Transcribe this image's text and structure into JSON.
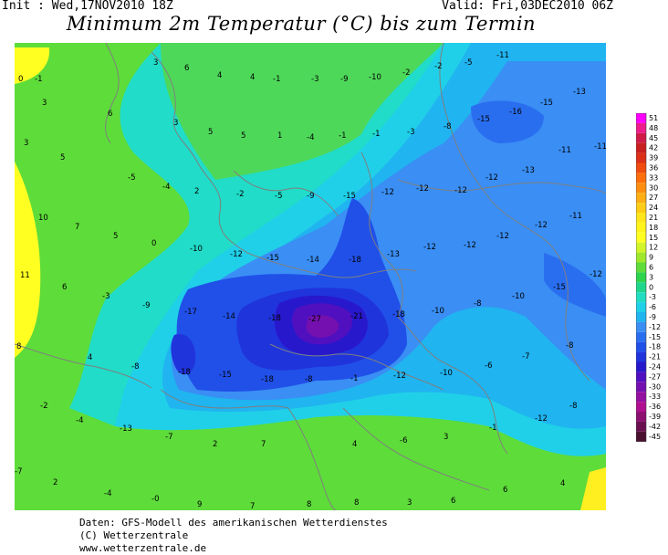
{
  "header": {
    "init": "Init : Wed,17NOV2010 18Z",
    "valid": "Valid: Fri,03DEC2010 06Z",
    "title": "Minimum 2m Temperatur (°C) bis zum Termin"
  },
  "footer": {
    "line1": "Daten: GFS-Modell des amerikanischen Wetterdienstes",
    "line2": "(C) Wetterzentrale",
    "line3": "www.wetterzentrale.de"
  },
  "legend": {
    "labels": [
      "51",
      "48",
      "45",
      "42",
      "39",
      "36",
      "33",
      "30",
      "27",
      "24",
      "21",
      "18",
      "15",
      "12",
      "9",
      "6",
      "3",
      "0",
      "-3",
      "-6",
      "-9",
      "-12",
      "-15",
      "-18",
      "-21",
      "-24",
      "-27",
      "-30",
      "-33",
      "-36",
      "-39",
      "-42",
      "-45"
    ],
    "colors": [
      "#ff00ff",
      "#ee1c8c",
      "#d01a48",
      "#c8201e",
      "#dc3018",
      "#f04c10",
      "#ff6e0c",
      "#ff8e10",
      "#ffae14",
      "#ffcc18",
      "#ffe61c",
      "#fff41c",
      "#ffff22",
      "#d2f52a",
      "#9fe82e",
      "#5edc3a",
      "#2ed34e",
      "#20d68a",
      "#22dcc2",
      "#20d0e8",
      "#20b4f0",
      "#3a8ef4",
      "#2a6ef0",
      "#2050e8",
      "#2034dc",
      "#2818cc",
      "#5010c0",
      "#7410b0",
      "#9410a0",
      "#b01090",
      "#8c1070",
      "#6a1050",
      "#4a1030"
    ]
  },
  "map_labels": [
    {
      "t": "0"
    },
    {
      "t": "-1"
    },
    {
      "t": "3"
    },
    {
      "t": "6"
    },
    {
      "t": "4"
    },
    {
      "t": "4"
    },
    {
      "t": "-1"
    },
    {
      "t": "-3"
    },
    {
      "t": "-9"
    },
    {
      "t": "-10"
    },
    {
      "t": "-2"
    },
    {
      "t": "-2"
    },
    {
      "t": "-5"
    },
    {
      "t": "-11"
    },
    {
      "t": "3"
    },
    {
      "t": "6"
    },
    {
      "t": "3"
    },
    {
      "t": "5"
    },
    {
      "t": "5"
    },
    {
      "t": "1"
    },
    {
      "t": "-4"
    },
    {
      "t": "-1"
    },
    {
      "t": "-1"
    },
    {
      "t": "-3"
    },
    {
      "t": "-8"
    },
    {
      "t": "-15"
    },
    {
      "t": "-16"
    },
    {
      "t": "-15"
    },
    {
      "t": "-13"
    },
    {
      "t": "5"
    },
    {
      "t": "3"
    },
    {
      "t": "-5"
    },
    {
      "t": "-4"
    },
    {
      "t": "2"
    },
    {
      "t": "-2"
    },
    {
      "t": "-5"
    },
    {
      "t": "-9"
    },
    {
      "t": "-15"
    },
    {
      "t": "-12"
    },
    {
      "t": "-12"
    },
    {
      "t": "-12"
    },
    {
      "t": "-12"
    },
    {
      "t": "-13"
    },
    {
      "t": "-11"
    },
    {
      "t": "-11"
    },
    {
      "t": "10"
    },
    {
      "t": "7"
    },
    {
      "t": "5"
    },
    {
      "t": "0"
    },
    {
      "t": "-10"
    },
    {
      "t": "-12"
    },
    {
      "t": "-15"
    },
    {
      "t": "-14"
    },
    {
      "t": "-18"
    },
    {
      "t": "-13"
    },
    {
      "t": "-12"
    },
    {
      "t": "-12"
    },
    {
      "t": "-12"
    },
    {
      "t": "-12"
    },
    {
      "t": "-11"
    },
    {
      "t": "11"
    },
    {
      "t": "6"
    },
    {
      "t": "-3"
    },
    {
      "t": "-9"
    },
    {
      "t": "-17"
    },
    {
      "t": "-14"
    },
    {
      "t": "-18"
    },
    {
      "t": "-27"
    },
    {
      "t": "-21"
    },
    {
      "t": "-18"
    },
    {
      "t": "-10"
    },
    {
      "t": "-8"
    },
    {
      "t": "-10"
    },
    {
      "t": "-15"
    },
    {
      "t": "-12"
    },
    {
      "t": "8"
    },
    {
      "t": "4"
    },
    {
      "t": "-8"
    },
    {
      "t": "-18"
    },
    {
      "t": "-15"
    },
    {
      "t": "-18"
    },
    {
      "t": "-8"
    },
    {
      "t": "-1"
    },
    {
      "t": "-12"
    },
    {
      "t": "-10"
    },
    {
      "t": "-6"
    },
    {
      "t": "-7"
    },
    {
      "t": "-8"
    },
    {
      "t": "-2"
    },
    {
      "t": "-4"
    },
    {
      "t": "-13"
    },
    {
      "t": "-7"
    },
    {
      "t": "2"
    },
    {
      "t": "7"
    },
    {
      "t": "4"
    },
    {
      "t": "-6"
    },
    {
      "t": "3"
    },
    {
      "t": "-1"
    },
    {
      "t": "-12"
    },
    {
      "t": "-8"
    },
    {
      "t": "-7"
    },
    {
      "t": "2"
    },
    {
      "t": "-4"
    },
    {
      "t": "-0"
    },
    {
      "t": "9"
    },
    {
      "t": "7"
    },
    {
      "t": "8"
    },
    {
      "t": "8"
    },
    {
      "t": "3"
    },
    {
      "t": "6"
    },
    {
      "t": "6"
    },
    {
      "t": "4"
    }
  ]
}
